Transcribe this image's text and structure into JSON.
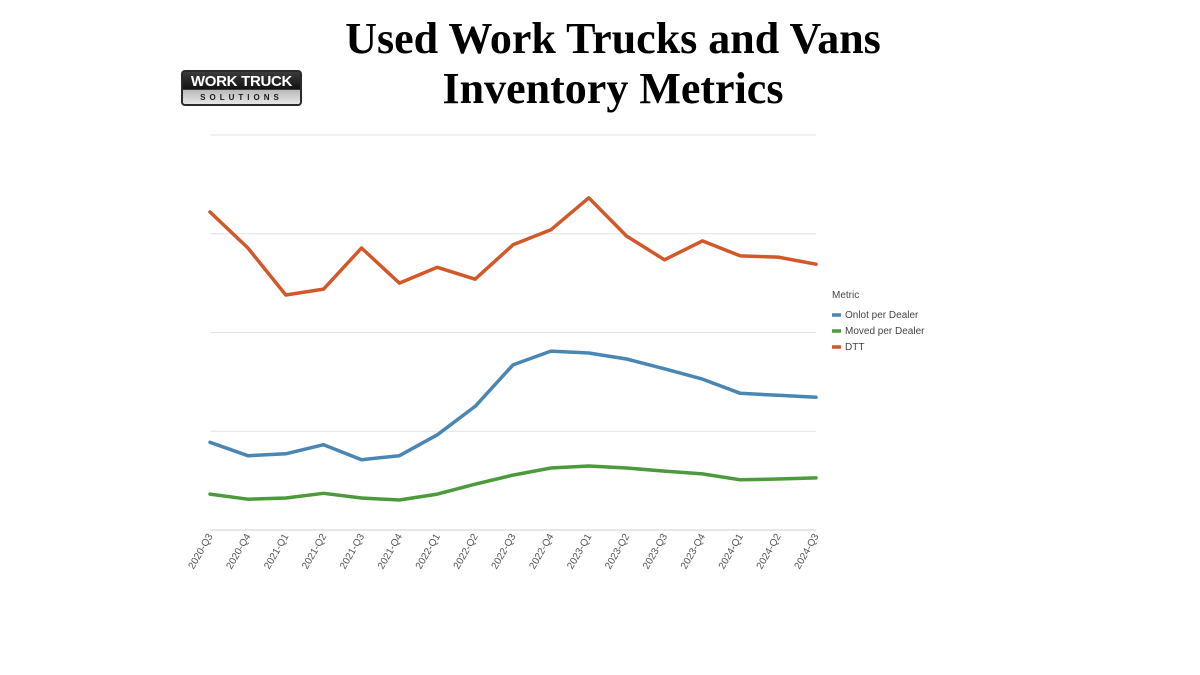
{
  "logo": {
    "top_text": "WORK TRUCK",
    "bottom_text": "SOLUTIONS"
  },
  "chart_data": {
    "type": "line",
    "title": "Used Work Trucks and Vans Inventory Metrics",
    "xlabel": "",
    "ylabel": "",
    "ylim": [
      0,
      100
    ],
    "grid": true,
    "y_tick_labels_shown": false,
    "legend": {
      "title": "Metric",
      "placement": "right"
    },
    "categories": [
      "2020-Q3",
      "2020-Q4",
      "2021-Q1",
      "2021-Q2",
      "2021-Q3",
      "2021-Q4",
      "2022-Q1",
      "2022-Q2",
      "2022-Q3",
      "2022-Q4",
      "2023-Q1",
      "2023-Q2",
      "2023-Q3",
      "2023-Q4",
      "2024-Q1",
      "2024-Q2",
      "2024-Q3"
    ],
    "series": [
      {
        "name": "Onlot per Dealer",
        "color": "#4a86b3",
        "values": [
          22.2,
          18.8,
          19.3,
          21.6,
          17.8,
          18.8,
          24.1,
          31.3,
          41.8,
          45.3,
          44.8,
          43.3,
          40.8,
          38.2,
          34.6,
          34.1,
          33.6
        ]
      },
      {
        "name": "Moved per Dealer",
        "color": "#4b9a3c",
        "values": [
          9.1,
          7.8,
          8.1,
          9.3,
          8.1,
          7.6,
          9.1,
          11.6,
          13.9,
          15.7,
          16.2,
          15.7,
          14.9,
          14.2,
          12.7,
          12.9,
          13.2
        ]
      },
      {
        "name": "DTT",
        "color": "#d2582a",
        "values": [
          80.5,
          71.4,
          59.5,
          61.0,
          71.4,
          62.5,
          66.5,
          63.5,
          72.2,
          76.0,
          84.1,
          74.4,
          68.4,
          73.2,
          69.4,
          69.1,
          67.3
        ]
      }
    ]
  }
}
